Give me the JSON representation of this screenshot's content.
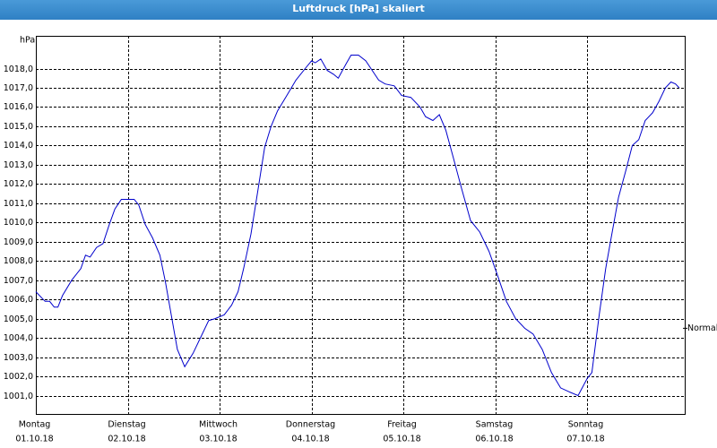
{
  "chart_data": {
    "type": "line",
    "title": "Luftdruck [hPa] skaliert",
    "y_unit": "hPa",
    "x": [
      0,
      0.1,
      0.15,
      0.2,
      0.24,
      0.29,
      0.39,
      0.49,
      0.54,
      0.59,
      0.66,
      0.73,
      0.8,
      0.86,
      0.93,
      1.0,
      1.07,
      1.12,
      1.19,
      1.27,
      1.35,
      1.41,
      1.48,
      1.54,
      1.62,
      1.71,
      1.8,
      1.88,
      1.95,
      2.05,
      2.13,
      2.2,
      2.26,
      2.34,
      2.42,
      2.49,
      2.56,
      2.63,
      2.73,
      2.83,
      2.93,
      3.0,
      3.04,
      3.1,
      3.17,
      3.24,
      3.29,
      3.37,
      3.43,
      3.51,
      3.59,
      3.66,
      3.73,
      3.8,
      3.9,
      3.98,
      4.08,
      4.18,
      4.24,
      4.32,
      4.39,
      4.46,
      4.54,
      4.63,
      4.73,
      4.83,
      4.93,
      5.02,
      5.12,
      5.22,
      5.32,
      5.41,
      5.51,
      5.61,
      5.71,
      5.8,
      5.9,
      6.0,
      6.05,
      6.13,
      6.2,
      6.26,
      6.34,
      6.42,
      6.49,
      6.56,
      6.63,
      6.71,
      6.78,
      6.85,
      6.91,
      6.96,
      7.0
    ],
    "series": [
      {
        "name": "Luftdruck",
        "color": "#0000cc",
        "values": [
          1006.4,
          1005.9,
          1005.9,
          1005.6,
          1005.6,
          1006.2,
          1007.0,
          1007.6,
          1008.3,
          1008.2,
          1008.7,
          1008.9,
          1009.9,
          1010.7,
          1011.2,
          1011.2,
          1011.2,
          1010.9,
          1009.9,
          1009.2,
          1008.3,
          1006.9,
          1005.0,
          1003.4,
          1002.5,
          1003.2,
          1004.1,
          1004.9,
          1005.0,
          1005.2,
          1005.7,
          1006.4,
          1007.6,
          1009.4,
          1011.8,
          1013.9,
          1015.0,
          1015.8,
          1016.6,
          1017.4,
          1018.0,
          1018.4,
          1018.3,
          1018.5,
          1017.9,
          1017.7,
          1017.5,
          1018.2,
          1018.7,
          1018.7,
          1018.4,
          1017.9,
          1017.4,
          1017.2,
          1017.1,
          1016.6,
          1016.5,
          1016.0,
          1015.5,
          1015.3,
          1015.6,
          1014.8,
          1013.4,
          1011.8,
          1010.1,
          1009.5,
          1008.5,
          1007.3,
          1005.9,
          1005.0,
          1004.5,
          1004.2,
          1003.4,
          1002.2,
          1001.4,
          1001.2,
          1001.0,
          1001.9,
          1002.2,
          1005.2,
          1007.6,
          1009.2,
          1011.3,
          1012.7,
          1014.0,
          1014.3,
          1015.3,
          1015.7,
          1016.3,
          1017.0,
          1017.3,
          1017.2,
          1017.0
        ]
      }
    ],
    "xlim": [
      0,
      7.07
    ],
    "xticks": [
      {
        "value": 0,
        "label": "Montag",
        "date": "01.10.18"
      },
      {
        "value": 1,
        "label": "Dienstag",
        "date": "02.10.18"
      },
      {
        "value": 2,
        "label": "Mittwoch",
        "date": "03.10.18"
      },
      {
        "value": 3,
        "label": "Donnerstag",
        "date": "04.10.18"
      },
      {
        "value": 4,
        "label": "Freitag",
        "date": "05.10.18"
      },
      {
        "value": 5,
        "label": "Samstag",
        "date": "06.10.18"
      },
      {
        "value": 6,
        "label": "Sonntag",
        "date": "07.10.18"
      }
    ],
    "ylim": [
      1000,
      1019.7
    ],
    "yticks": [
      {
        "value": 1001,
        "label": "1001,0"
      },
      {
        "value": 1002,
        "label": "1002,0"
      },
      {
        "value": 1003,
        "label": "1003,0"
      },
      {
        "value": 1004,
        "label": "1004,0"
      },
      {
        "value": 1005,
        "label": "1005,0"
      },
      {
        "value": 1006,
        "label": "1006,0"
      },
      {
        "value": 1007,
        "label": "1007,0"
      },
      {
        "value": 1008,
        "label": "1008,0"
      },
      {
        "value": 1009,
        "label": "1009,0"
      },
      {
        "value": 1010,
        "label": "1010,0"
      },
      {
        "value": 1011,
        "label": "1011,0"
      },
      {
        "value": 1012,
        "label": "1012,0"
      },
      {
        "value": 1013,
        "label": "1013,0"
      },
      {
        "value": 1014,
        "label": "1014,0"
      },
      {
        "value": 1015,
        "label": "1015,0"
      },
      {
        "value": 1016,
        "label": "1016,0"
      },
      {
        "value": 1017,
        "label": "1017,0"
      },
      {
        "value": 1018,
        "label": "1018,0"
      }
    ],
    "normal": {
      "value": 1004.5,
      "label": "Normal"
    },
    "grid": true
  }
}
